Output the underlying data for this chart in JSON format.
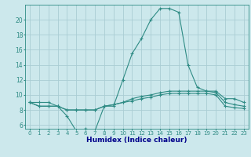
{
  "xlabel": "Humidex (Indice chaleur)",
  "x": [
    0,
    1,
    2,
    3,
    4,
    5,
    6,
    7,
    8,
    9,
    10,
    11,
    12,
    13,
    14,
    15,
    16,
    17,
    18,
    19,
    20,
    21,
    22,
    23
  ],
  "line_max": [
    9.0,
    9.0,
    9.0,
    8.5,
    7.2,
    5.2,
    5.5,
    5.2,
    8.5,
    8.5,
    12.0,
    15.5,
    17.5,
    20.0,
    21.5,
    21.5,
    21.0,
    14.0,
    11.0,
    10.5,
    10.5,
    9.5,
    9.5,
    9.0
  ],
  "line_avg": [
    9.0,
    8.5,
    8.5,
    8.5,
    8.0,
    8.0,
    8.0,
    8.0,
    8.5,
    8.7,
    9.0,
    9.5,
    9.8,
    10.0,
    10.3,
    10.5,
    10.5,
    10.5,
    10.5,
    10.5,
    10.3,
    9.0,
    8.7,
    8.5
  ],
  "line_min": [
    9.0,
    8.5,
    8.5,
    8.5,
    8.0,
    8.0,
    8.0,
    8.0,
    8.5,
    8.7,
    9.0,
    9.2,
    9.5,
    9.7,
    10.0,
    10.2,
    10.2,
    10.2,
    10.2,
    10.2,
    10.0,
    8.5,
    8.3,
    8.2
  ],
  "line_color": "#2e8b84",
  "bg_color": "#cce8ec",
  "grid_color": "#aacdd4",
  "ylim": [
    5.5,
    22.0
  ],
  "yticks": [
    6,
    8,
    10,
    12,
    14,
    16,
    18,
    20
  ],
  "xticks": [
    0,
    1,
    2,
    3,
    4,
    5,
    6,
    7,
    8,
    9,
    10,
    11,
    12,
    13,
    14,
    15,
    16,
    17,
    18,
    19,
    20,
    21,
    22,
    23
  ],
  "xlabel_color": "#00008b",
  "xlabel_fontsize": 6.5,
  "tick_fontsize": 5.0,
  "ytick_fontsize": 5.5
}
